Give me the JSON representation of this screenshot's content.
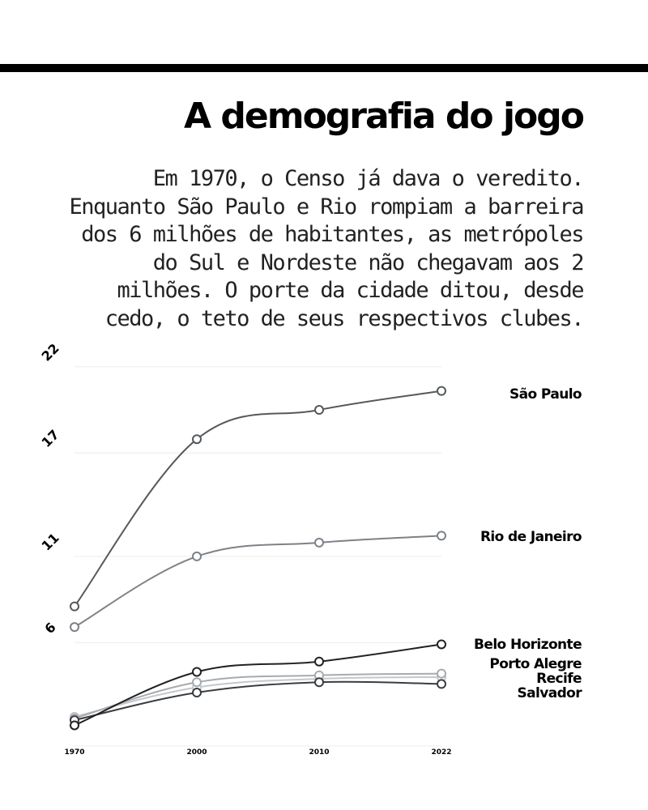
{
  "title": "A demografia do jogo",
  "intro": "Em 1970, o Censo já dava o veredito. Enquanto São Paulo e Rio rompiam a barreira dos 6 milhões de habitantes, as metrópoles do Sul e Nordeste não chegavam aos 2 milhões. O porte da cidade ditou, desde cedo, o teto de seus respectivos clubes.",
  "chart_data": {
    "type": "line",
    "x": [
      "1970",
      "2000",
      "2010",
      "2022"
    ],
    "y_ticks": [
      "6",
      "11",
      "17",
      "22"
    ],
    "ylim": [
      1,
      22
    ],
    "grid": true,
    "series": [
      {
        "name": "São Paulo",
        "values": [
          8.1,
          17.8,
          19.5,
          20.6
        ],
        "color": "#55595c"
      },
      {
        "name": "Rio de Janeiro",
        "values": [
          6.9,
          11.0,
          11.8,
          12.2
        ],
        "color": "#7d8287"
      },
      {
        "name": "Belo Horizonte",
        "values": [
          1.2,
          4.3,
          4.9,
          5.9
        ],
        "color": "#222222"
      },
      {
        "name": "Porto Alegre",
        "values": [
          1.6,
          3.7,
          4.1,
          4.2
        ],
        "color": "#a7abaf"
      },
      {
        "name": "Recife",
        "values": [
          1.7,
          3.4,
          3.9,
          4.0
        ],
        "color": "#c5c8cb"
      },
      {
        "name": "Salvador",
        "values": [
          1.5,
          3.1,
          3.7,
          3.6
        ],
        "color": "#3a3d40"
      }
    ]
  }
}
